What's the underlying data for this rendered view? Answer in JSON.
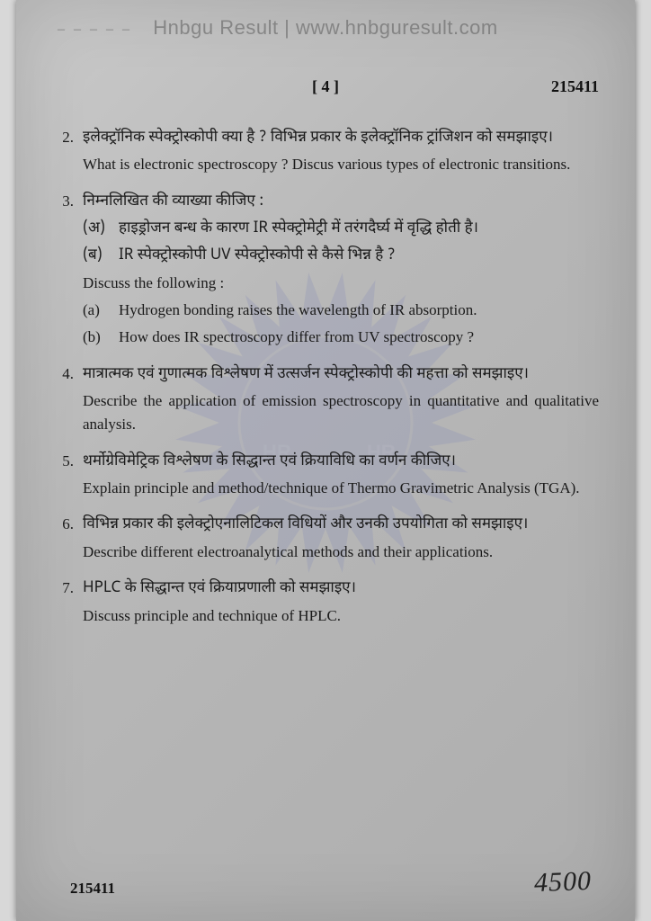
{
  "watermark": "Hnbgu Result | www.hnbguresult.com",
  "dash_lead": "– – – – –",
  "header": {
    "page": "[ 4 ]",
    "code": "215411"
  },
  "questions": [
    {
      "num": "2.",
      "hindi": "इलेक्ट्रॉनिक स्पेक्ट्रोस्कोपी क्या है ? विभिन्न प्रकार के इलेक्ट्रॉनिक ट्रांजिशन को समझाइए।",
      "english": "What is electronic spectroscopy ? Discus various types of electronic transitions."
    },
    {
      "num": "3.",
      "hindi": "निम्नलिखित की व्याख्या कीजिए :",
      "subs_hindi": [
        {
          "label": "(अ)",
          "text": "हाइड्रोजन बन्ध के कारण IR स्पेक्ट्रोमेट्री में तरंगदैर्घ्य में वृद्धि होती है।"
        },
        {
          "label": "(ब)",
          "text": "IR स्पेक्ट्रोस्कोपी UV स्पेक्ट्रोस्कोपी से कैसे भिन्न है ?"
        }
      ],
      "english": "Discuss the following :",
      "subs_english": [
        {
          "label": "(a)",
          "text": "Hydrogen bonding raises the wavelength of IR absorption."
        },
        {
          "label": "(b)",
          "text": "How does IR spectroscopy differ from UV spectroscopy ?"
        }
      ]
    },
    {
      "num": "4.",
      "hindi": "मात्रात्मक एवं गुणात्मक विश्लेषण में उत्सर्जन स्पेक्ट्रोस्कोपी की महत्ता को समझाइए।",
      "english": "Describe the application of emission spectroscopy in quantitative and qualitative analysis."
    },
    {
      "num": "5.",
      "hindi": "थर्मोग्रेविमेट्रिक विश्लेषण के सिद्धान्त एवं क्रियाविधि का वर्णन कीजिए।",
      "english": "Explain principle and method/technique of Thermo Gravimetric Analysis (TGA)."
    },
    {
      "num": "6.",
      "hindi": "विभिन्न प्रकार की इलेक्ट्रोएनालिटिकल विधियों और उनकी उपयोगिता को समझाइए।",
      "english": "Describe different electroanalytical methods and their applications."
    },
    {
      "num": "7.",
      "hindi": "HPLC के सिद्धान्त एवं क्रियाप्रणाली को समझाइए।",
      "english": "Discuss principle and technique of HPLC."
    }
  ],
  "footer": {
    "code": "215411",
    "handwritten": "4500"
  },
  "colors": {
    "page_bg": "#bfbfbf",
    "outer_bg": "#d8d8d8",
    "text": "#1a1a1a",
    "seal": "#7a7fa8"
  },
  "seal": {
    "outer_radius": 170,
    "inner_radius": 110,
    "teeth": 28,
    "color": "#8a8fb8",
    "hnr_left": "HR",
    "hnr_right": "HR"
  }
}
